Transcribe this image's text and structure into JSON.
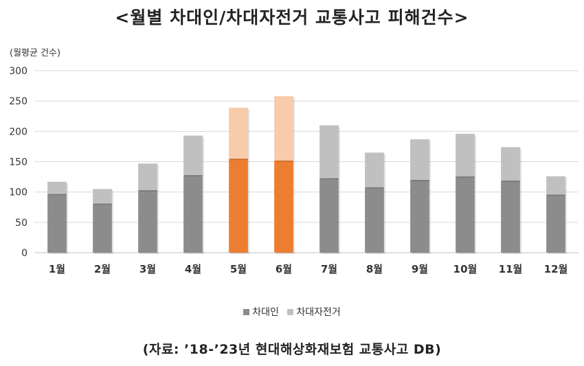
{
  "chart_data": {
    "type": "bar",
    "stacked": true,
    "title": "<월별 차대인/차대자전거 교통사고 피해건수>",
    "unit_label": "(월평균 건수)",
    "source": "(자료: ’18-’23년 현대해상화재보험 교통사고 DB)",
    "categories": [
      "1월",
      "2월",
      "3월",
      "4월",
      "5월",
      "6월",
      "7월",
      "8월",
      "9월",
      "10월",
      "11월",
      "12월"
    ],
    "series": [
      {
        "name": "차대인",
        "values": [
          97,
          81,
          103,
          128,
          155,
          152,
          123,
          108,
          120,
          126,
          119,
          96
        ],
        "color": "#8c8c8c",
        "highlight_color": "#ed7d31"
      },
      {
        "name": "차대자전거",
        "values": [
          20,
          24,
          44,
          65,
          84,
          106,
          87,
          57,
          67,
          70,
          55,
          30
        ],
        "color": "#c0c0c0",
        "highlight_color": "#f8cbad"
      }
    ],
    "highlight_categories": [
      "5월",
      "6월"
    ],
    "ylim": [
      0,
      300
    ],
    "yticks": [
      0,
      50,
      100,
      150,
      200,
      250,
      300
    ],
    "grid": true,
    "legend_position": "bottom"
  }
}
